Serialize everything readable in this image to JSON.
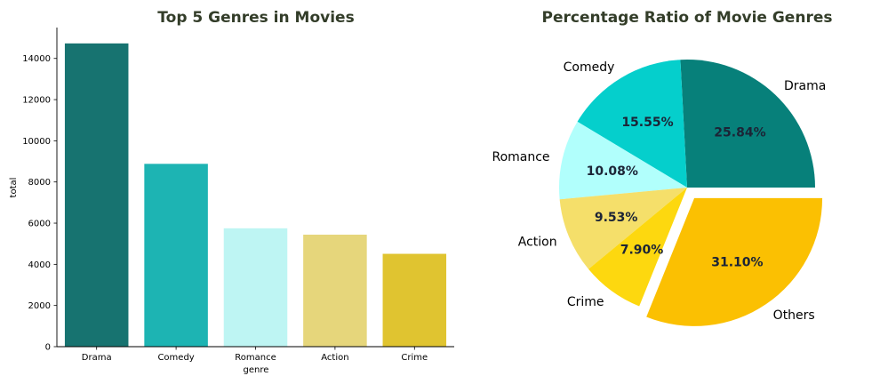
{
  "chart_data": [
    {
      "type": "bar",
      "title": "Top 5 Genres in Movies",
      "xlabel": "genre",
      "ylabel": "total",
      "categories": [
        "Drama",
        "Comedy",
        "Romance",
        "Action",
        "Crime"
      ],
      "values": [
        14730,
        8880,
        5750,
        5440,
        4510
      ],
      "colors": [
        "#177370",
        "#1db4b3",
        "#bef5f3",
        "#e6d67b",
        "#e0c430"
      ],
      "ylim": [
        0,
        15500
      ],
      "yticks": [
        0,
        2000,
        4000,
        6000,
        8000,
        10000,
        12000,
        14000
      ],
      "ytick_labels": [
        "0",
        "2000",
        "4000",
        "6000",
        "8000",
        "10000",
        "12000",
        "14000"
      ],
      "grid": false
    },
    {
      "type": "pie",
      "title": "Percentage Ratio of Movie Genres",
      "labels": [
        "Drama",
        "Comedy",
        "Romance",
        "Action",
        "Crime",
        "Others"
      ],
      "values": [
        25.84,
        15.55,
        10.08,
        9.53,
        7.9,
        31.1
      ],
      "value_labels": [
        "25.84%",
        "15.55%",
        "10.08%",
        "9.53%",
        "7.90%",
        "31.10%"
      ],
      "colors": [
        "#07807a",
        "#05cfcc",
        "#b1fffc",
        "#f5df6a",
        "#fdd80f",
        "#fbc002"
      ],
      "explode": [
        0,
        0,
        0,
        0,
        0,
        0.1
      ],
      "startangle": 0,
      "direction": "counterclockwise"
    }
  ]
}
